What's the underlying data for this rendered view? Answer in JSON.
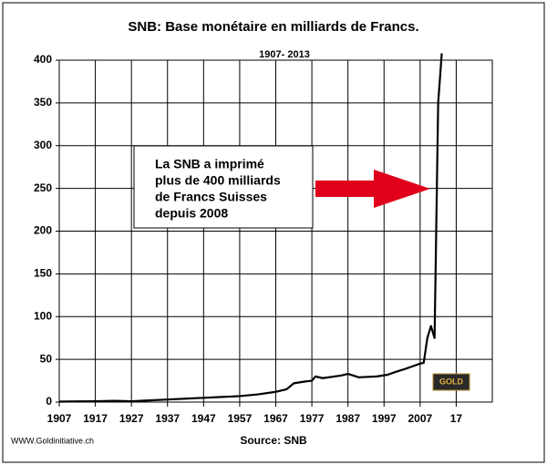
{
  "chart_data": {
    "type": "line",
    "title": "SNB: Base monétaire en milliards de Francs.",
    "subtitle": "1907-  2013",
    "annotation": [
      "La SNB a imprimé",
      "plus de 400 milliards",
      "de Francs Suisses",
      "depuis 2008"
    ],
    "source": "Source: SNB",
    "website": "WWW.Goldinitiative.ch",
    "logo": "GOLD",
    "x": [
      1907,
      1912,
      1917,
      1922,
      1927,
      1932,
      1937,
      1942,
      1947,
      1952,
      1957,
      1962,
      1967,
      1970,
      1972,
      1975,
      1977,
      1978,
      1980,
      1985,
      1987,
      1990,
      1995,
      1998,
      2000,
      2003,
      2005,
      2007,
      2008,
      2009,
      2010,
      2011,
      2012,
      2013
    ],
    "values": [
      0.5,
      0.8,
      1,
      1.5,
      1,
      2,
      3,
      4,
      5,
      6,
      7,
      9,
      12,
      15,
      22,
      24,
      25,
      30,
      28,
      31,
      33,
      29,
      30,
      32,
      35,
      39,
      42,
      45,
      46,
      75,
      89,
      75,
      350,
      408
    ],
    "color": "#000000",
    "xlim": [
      1907,
      2027
    ],
    "xticks": [
      1907,
      1917,
      1927,
      1937,
      1947,
      1957,
      1967,
      1977,
      1987,
      1997,
      2007,
      {
        "value": 2017,
        "label": "17"
      }
    ],
    "ylim": [
      0,
      400
    ],
    "yticks": [
      0,
      50,
      100,
      150,
      200,
      250,
      300,
      350,
      400
    ],
    "grid": true
  }
}
